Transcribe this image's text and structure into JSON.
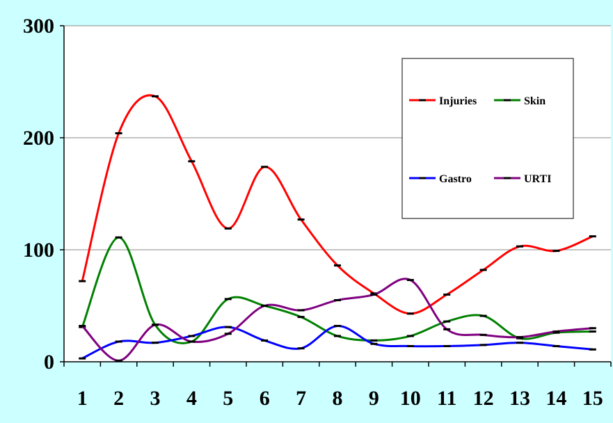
{
  "chart_data": {
    "type": "line",
    "title": "",
    "xlabel": "",
    "ylabel": "",
    "categories": [
      "1",
      "2",
      "3",
      "4",
      "5",
      "6",
      "7",
      "8",
      "9",
      "10",
      "11",
      "12",
      "13",
      "14",
      "15"
    ],
    "ylim": [
      0,
      300
    ],
    "yticks": [
      0,
      100,
      200,
      300
    ],
    "grid": true,
    "legend_position": "top-right",
    "smooth": true,
    "series": [
      {
        "name": "Injuries",
        "color": "#ff0000",
        "values": [
          72,
          204,
          237,
          179,
          119,
          174,
          127,
          86,
          61,
          43,
          60,
          82,
          103,
          99,
          112
        ]
      },
      {
        "name": "Skin",
        "color": "#008000",
        "values": [
          31,
          111,
          33,
          18,
          56,
          50,
          40,
          23,
          19,
          23,
          36,
          41,
          21,
          26,
          27
        ]
      },
      {
        "name": "Gastro",
        "color": "#0000ff",
        "values": [
          3,
          18,
          17,
          23,
          31,
          19,
          12,
          32,
          16,
          14,
          14,
          15,
          17,
          14,
          11
        ]
      },
      {
        "name": "URTI",
        "color": "#800080",
        "values": [
          32,
          1,
          33,
          18,
          25,
          50,
          46,
          55,
          60,
          73,
          29,
          24,
          22,
          27,
          30
        ]
      }
    ]
  }
}
